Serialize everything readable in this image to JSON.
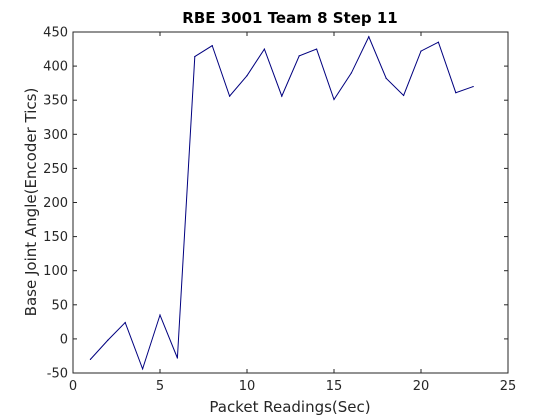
{
  "chart_data": {
    "type": "line",
    "title": "RBE 3001 Team 8 Step 11",
    "xlabel": "Packet Readings(Sec)",
    "ylabel": "Base Joint Angle(Encoder Tics)",
    "xlim": [
      0,
      25
    ],
    "ylim": [
      -50,
      450
    ],
    "xticks": [
      0,
      5,
      10,
      15,
      20,
      25
    ],
    "yticks": [
      -50,
      0,
      50,
      100,
      150,
      200,
      250,
      300,
      350,
      400,
      450
    ],
    "grid": false,
    "series": [
      {
        "color": "#00007f",
        "x": [
          1,
          2,
          3,
          4,
          5,
          6,
          7,
          8,
          9,
          10,
          11,
          12,
          13,
          14,
          15,
          16,
          17,
          18,
          19,
          20,
          21,
          22,
          23
        ],
        "values": [
          -30,
          -2,
          24,
          -44,
          35,
          -28,
          414,
          430,
          356,
          386,
          425,
          356,
          415,
          425,
          351,
          390,
          443,
          382,
          357,
          422,
          435,
          361,
          370
        ]
      }
    ]
  },
  "colors": {
    "axis": "#262626",
    "background": "#ffffff"
  }
}
